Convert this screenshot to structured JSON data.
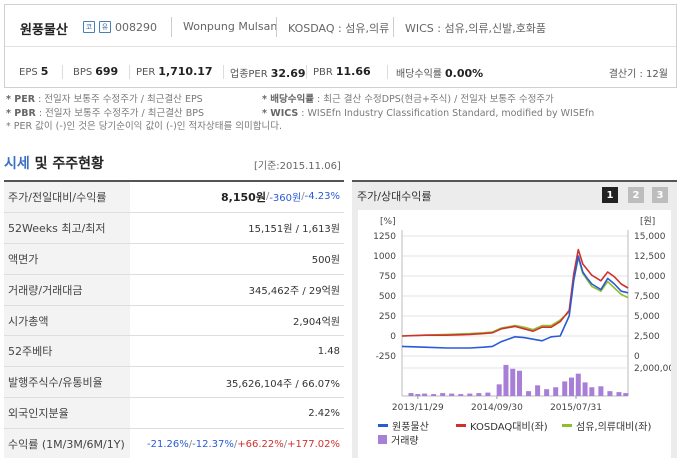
{
  "header": {
    "company_name": "원풍물산",
    "badge_a": "코",
    "badge_b": "유",
    "code": "008290",
    "english_name": "Wonpung Mulsan",
    "market_sector": "KOSDAQ : 섬유,의류",
    "wics": "WICS : 섬유,의류,신발,호화품",
    "fiscal": "결산기 : 12월"
  },
  "metrics": [
    {
      "label": "EPS",
      "value": "5"
    },
    {
      "label": "BPS",
      "value": "699"
    },
    {
      "label": "PER",
      "value": "1,710.17"
    },
    {
      "label": "업종PER",
      "value": "32.69"
    },
    {
      "label": "PBR",
      "value": "11.66"
    },
    {
      "label": "배당수익률",
      "value": "0.00%"
    }
  ],
  "notes": {
    "per_key": "* PER",
    "per_text": " : 전일자 보통주 수정주가 / 최근결산 EPS",
    "pbr_key": "* PBR",
    "pbr_text": " : 전일자 보통주 수정주가 / 최근결산 BPS",
    "neg_text": "* PER 값이 (-)인 것은 당기순이익 값이 (-)인 적자상태를 의미합니다.",
    "div_key": "* 배당수익률",
    "div_text": " : 최근 결산 수정DPS(현금+주식) / 전일자 보통주 수정주가",
    "wics_key": "* WICS",
    "wics_text": " : WISEfn Industry Classification Standard, modified by WISEfn"
  },
  "section": {
    "title_accent": "시세",
    "title_rest": " 및 주주현황",
    "as_of": "[기준:2015.11.06]"
  },
  "table": {
    "row0": {
      "label": "주가/전일대비/수익률",
      "price": "8,150원",
      "sep1": " / ",
      "change": "-360원",
      "sep2": " / ",
      "rate": "-4.23%"
    },
    "row1": {
      "label": "52Weeks 최고/최저",
      "value": "15,151원 / 1,613원"
    },
    "row2": {
      "label": "액면가",
      "value": "500원"
    },
    "row3": {
      "label": "거래량/거래대금",
      "value": "345,462주 / 29억원"
    },
    "row4": {
      "label": "시가총액",
      "value": "2,904억원"
    },
    "row5": {
      "label": "52주베타",
      "value": "1.48"
    },
    "row6": {
      "label": "발행주식수/유통비율",
      "value": "35,626,104주 / 66.07%"
    },
    "row7": {
      "label": "외국인지분율",
      "value": "2.42%"
    },
    "row8": {
      "label": "수익률 (1M/3M/6M/1Y)",
      "r1": "-21.26%",
      "r2": "-12.37%",
      "r3": "+66.22%",
      "r4": "+177.02%",
      "sep": "/"
    }
  },
  "chart_panel": {
    "title": "주가/상대수익률",
    "tab1": "1",
    "tab2": "2",
    "tab3": "3"
  },
  "colors": {
    "stock": "#2a5bd7",
    "kosdaq": "#d0312d",
    "sector": "#8fbf2f",
    "volume": "#a77fd6"
  },
  "chart_data": {
    "type": "line",
    "left_unit": "[%]",
    "right_unit": "[원]",
    "left_ticks": [
      "1250",
      "1000",
      "750",
      "500",
      "250",
      "0",
      "-250"
    ],
    "left_tick_values": [
      1250,
      1000,
      750,
      500,
      250,
      0,
      -250
    ],
    "right_ticks": [
      "15,000",
      "12,500",
      "10,000",
      "7,500",
      "5,000",
      "2,500",
      "0"
    ],
    "right_tick_values": [
      15000,
      12500,
      10000,
      7500,
      5000,
      2500,
      0
    ],
    "volume_tick": "2,000,000",
    "x_labels": [
      "2013/11/29",
      "2014/09/30",
      "2015/07/31"
    ],
    "x_label_positions": [
      0.07,
      0.42,
      0.77
    ],
    "left_range": [
      -250,
      1250
    ],
    "series": [
      {
        "name": "원풍물산",
        "axis": "left",
        "t": [
          0,
          0.1,
          0.2,
          0.3,
          0.36,
          0.4,
          0.44,
          0.48,
          0.5,
          0.54,
          0.58,
          0.62,
          0.66,
          0.7,
          0.74,
          0.76,
          0.78,
          0.8,
          0.82,
          0.84,
          0.88,
          0.91,
          0.94,
          0.97,
          1.0
        ],
        "values": [
          -130,
          -140,
          -150,
          -150,
          -140,
          -130,
          -70,
          -30,
          -10,
          -20,
          -40,
          -60,
          -10,
          0,
          250,
          700,
          1000,
          800,
          720,
          650,
          580,
          720,
          650,
          560,
          540
        ]
      },
      {
        "name": "KOSDAQ대비(좌)",
        "axis": "left",
        "t": [
          0,
          0.1,
          0.2,
          0.3,
          0.36,
          0.4,
          0.44,
          0.48,
          0.5,
          0.54,
          0.58,
          0.62,
          0.66,
          0.7,
          0.74,
          0.76,
          0.78,
          0.8,
          0.82,
          0.84,
          0.88,
          0.91,
          0.94,
          0.97,
          1.0
        ],
        "values": [
          0,
          10,
          10,
          20,
          30,
          40,
          90,
          110,
          120,
          90,
          60,
          110,
          110,
          180,
          320,
          780,
          1080,
          900,
          830,
          760,
          690,
          800,
          740,
          650,
          600
        ]
      },
      {
        "name": "섬유,의류대비(좌)",
        "axis": "left",
        "t": [
          0,
          0.1,
          0.2,
          0.3,
          0.36,
          0.4,
          0.44,
          0.48,
          0.5,
          0.54,
          0.58,
          0.62,
          0.66,
          0.7,
          0.74,
          0.76,
          0.78,
          0.8,
          0.82,
          0.84,
          0.88,
          0.91,
          0.94,
          0.97,
          1.0
        ],
        "values": [
          0,
          10,
          20,
          30,
          40,
          50,
          100,
          120,
          130,
          110,
          80,
          130,
          130,
          200,
          300,
          700,
          980,
          780,
          700,
          620,
          560,
          680,
          600,
          520,
          480
        ]
      }
    ],
    "volume": {
      "name": "거래량",
      "max": 3500000,
      "t": [
        0.04,
        0.07,
        0.1,
        0.14,
        0.18,
        0.22,
        0.26,
        0.3,
        0.34,
        0.38,
        0.43,
        0.46,
        0.49,
        0.52,
        0.56,
        0.6,
        0.64,
        0.68,
        0.72,
        0.75,
        0.78,
        0.81,
        0.84,
        0.88,
        0.92,
        0.96,
        0.99
      ],
      "values": [
        300000,
        200000,
        250000,
        200000,
        300000,
        250000,
        200000,
        250000,
        300000,
        350000,
        1200000,
        3200000,
        2800000,
        2600000,
        500000,
        1100000,
        700000,
        900000,
        1500000,
        1900000,
        2300000,
        1400000,
        900000,
        1000000,
        500000,
        400000,
        300000
      ]
    }
  }
}
